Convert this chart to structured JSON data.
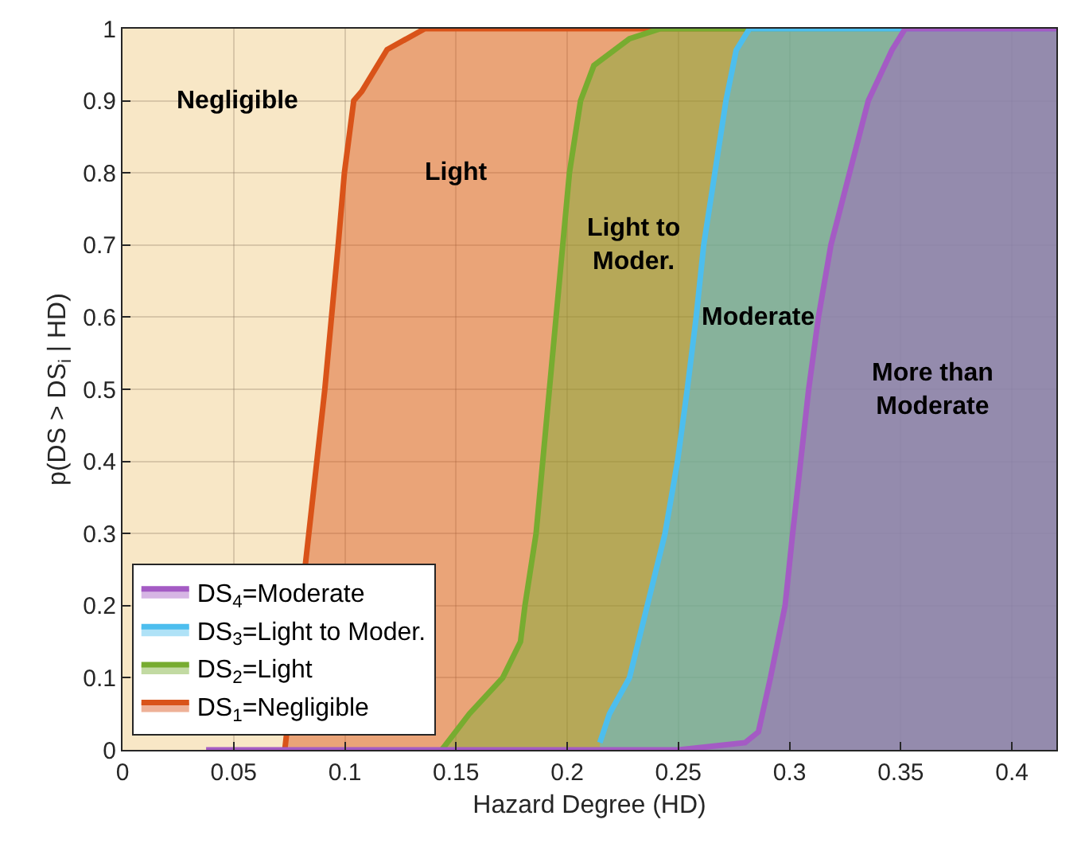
{
  "chart_data": {
    "type": "area",
    "xlabel": "Hazard Degree (HD)",
    "ylabel": "p(DS > DS$_{i}$ | HD)",
    "xlim": [
      0,
      0.42
    ],
    "ylim": [
      0,
      1
    ],
    "xticks": [
      0,
      0.05,
      0.1,
      0.15,
      0.2,
      0.25,
      0.3,
      0.35,
      0.4
    ],
    "yticks": [
      0,
      0.1,
      0.2,
      0.3,
      0.4,
      0.5,
      0.6,
      0.7,
      0.8,
      0.9,
      1
    ],
    "grid": true,
    "legend": "bottom left",
    "series": [
      {
        "name": "DS$_{1}$=Negligible",
        "color": "#d95319",
        "x": [
          0.073,
          0.091,
          0.097,
          0.0998,
          0.104,
          0.1076,
          0.119,
          0.136,
          0.42
        ],
        "values": [
          0,
          0.5,
          0.7,
          0.8,
          0.9,
          0.913,
          0.971,
          1,
          1
        ]
      },
      {
        "name": "DS$_{2}$=Light",
        "color": "#77ac30",
        "x": [
          0.1436,
          0.156,
          0.171,
          0.179,
          0.181,
          0.186,
          0.192,
          0.198,
          0.201,
          0.206,
          0.212,
          0.228,
          0.242,
          0.42
        ],
        "values": [
          0,
          0.05,
          0.1,
          0.15,
          0.2,
          0.3,
          0.5,
          0.7,
          0.8,
          0.9,
          0.949,
          0.986,
          1,
          1
        ]
      },
      {
        "name": "DS$_{3}$=Light to Moder.",
        "color": "#4dbeee",
        "x": [
          0.2147,
          0.219,
          0.228,
          0.236,
          0.244,
          0.2496,
          0.254,
          0.258,
          0.2614,
          0.2664,
          0.2714,
          0.276,
          0.282,
          0.42
        ],
        "values": [
          0.01,
          0.05,
          0.1,
          0.2,
          0.3,
          0.4,
          0.5,
          0.6,
          0.7,
          0.8,
          0.9,
          0.97,
          1,
          1
        ]
      },
      {
        "name": "DS$_{4}$=Moderate",
        "color": "#a45bc4",
        "x": [
          0.0376,
          0.25,
          0.265,
          0.28,
          0.286,
          0.2914,
          0.298,
          0.3014,
          0.305,
          0.3086,
          0.313,
          0.3186,
          0.327,
          0.3354,
          0.346,
          0.352,
          0.42
        ],
        "values": [
          0,
          0,
          0.005,
          0.01,
          0.025,
          0.1,
          0.2,
          0.3,
          0.4,
          0.5,
          0.6,
          0.7,
          0.8,
          0.9,
          0.97,
          1,
          1
        ]
      }
    ],
    "bands": [
      {
        "axis": "x",
        "from": 0,
        "to": 0.42,
        "color": "#f8e7c6"
      }
    ],
    "annotations": [
      "Negligible",
      "Light",
      "Light to\nModer.",
      "Moderate",
      "More than\nModerate"
    ]
  }
}
